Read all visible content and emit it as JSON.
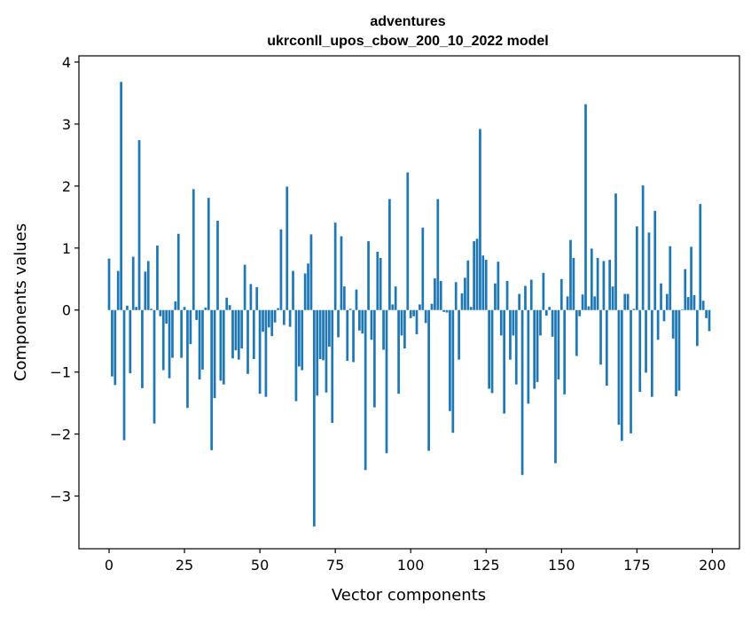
{
  "chart_data": {
    "type": "bar",
    "title": "adventures",
    "subtitle": "ukrconll_upos_cbow_200_10_2022 model",
    "xlabel": "Vector components",
    "ylabel": "Components values",
    "xlim": [
      -10,
      209
    ],
    "ylim": [
      -3.85,
      4.1
    ],
    "xticks": [
      0,
      25,
      50,
      75,
      100,
      125,
      150,
      175,
      200
    ],
    "yticks": [
      -3,
      -2,
      -1,
      0,
      1,
      2,
      3,
      4
    ],
    "xtick_labels": [
      "0",
      "25",
      "50",
      "75",
      "100",
      "125",
      "150",
      "175",
      "200"
    ],
    "ytick_labels": [
      "−3",
      "−2",
      "−1",
      "0",
      "1",
      "2",
      "3",
      "4"
    ],
    "grid": false,
    "bar_color": "#1f77b4",
    "values": [
      0.83,
      -1.07,
      -1.21,
      0.63,
      3.68,
      -2.1,
      0.07,
      -1.02,
      0.86,
      0.05,
      2.74,
      -1.26,
      0.62,
      0.79,
      0.02,
      -1.83,
      1.04,
      -0.1,
      -0.97,
      -0.22,
      -1.1,
      -0.77,
      0.14,
      1.23,
      -0.77,
      0.05,
      -1.58,
      -0.55,
      1.95,
      -0.16,
      -1.12,
      -0.96,
      0.04,
      1.81,
      -2.26,
      -1.42,
      1.44,
      -1.14,
      -1.2,
      0.2,
      0.08,
      -0.78,
      -0.65,
      -0.8,
      -0.62,
      0.73,
      -1.03,
      0.42,
      -0.79,
      0.37,
      -1.35,
      -0.35,
      -1.4,
      -0.28,
      -0.42,
      -0.2,
      0.03,
      1.3,
      -0.24,
      1.99,
      -0.27,
      0.63,
      -1.47,
      -0.91,
      -0.97,
      0.59,
      0.75,
      1.22,
      -3.49,
      -1.38,
      -0.79,
      -0.81,
      -1.33,
      -0.59,
      -1.82,
      1.41,
      -0.44,
      1.19,
      0.38,
      -0.82,
      0.02,
      -0.84,
      0.33,
      -0.33,
      -0.38,
      -2.58,
      1.11,
      -0.48,
      -1.57,
      0.94,
      0.84,
      -0.64,
      -2.31,
      1.79,
      0.09,
      0.38,
      -1.35,
      -0.41,
      -0.62,
      2.22,
      -0.13,
      -0.1,
      -0.39,
      0.09,
      1.33,
      -0.21,
      -2.27,
      0.1,
      0.51,
      1.79,
      0.47,
      -0.03,
      -0.04,
      -1.63,
      -1.98,
      0.45,
      -0.8,
      0.27,
      0.52,
      0.8,
      0.05,
      1.11,
      1.15,
      2.92,
      0.88,
      0.81,
      -1.27,
      -1.34,
      0.43,
      0.78,
      -0.41,
      -1.67,
      0.47,
      -0.8,
      -0.41,
      -1.2,
      0.26,
      -2.66,
      0.39,
      -1.51,
      0.49,
      -1.27,
      -1.16,
      -0.41,
      0.6,
      -0.09,
      0.05,
      -0.43,
      -2.47,
      -1.12,
      0.5,
      -1.36,
      0.22,
      1.13,
      0.84,
      -0.74,
      -0.1,
      0.25,
      3.32,
      0.06,
      0.99,
      0.22,
      0.84,
      -0.88,
      0.79,
      -1.22,
      0.81,
      0.38,
      1.88,
      -1.85,
      -2.11,
      0.26,
      0.26,
      -1.99,
      0.02,
      1.35,
      -1.32,
      2.01,
      -1.01,
      1.25,
      -1.4,
      1.6,
      -0.48,
      0.43,
      -0.18,
      0.26,
      1.03,
      -0.46,
      -1.39,
      -1.3,
      0.01,
      0.66,
      0.21,
      1.02,
      0.24,
      -0.58,
      1.71,
      0.15,
      -0.13,
      -0.34
    ]
  }
}
